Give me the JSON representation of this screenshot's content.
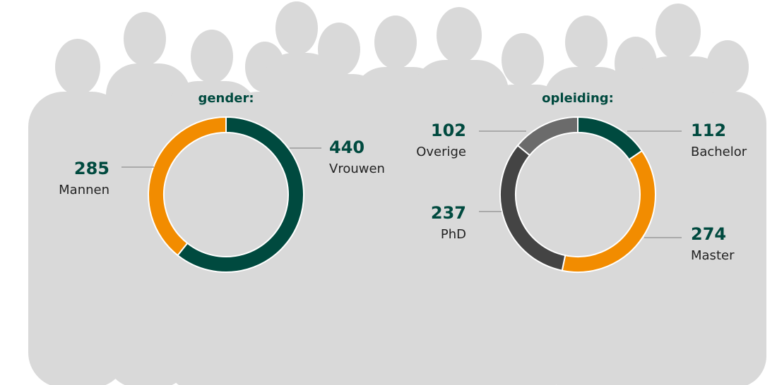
{
  "chart_data": [
    {
      "type": "pie",
      "title": "gender:",
      "categories": [
        "Vrouwen",
        "Mannen"
      ],
      "values": [
        440,
        285
      ],
      "colors": [
        "#004a3f",
        "#f28c00"
      ],
      "donut": true
    },
    {
      "type": "pie",
      "title": "opleiding:",
      "categories": [
        "Bachelor",
        "Master",
        "PhD",
        "Overige"
      ],
      "values": [
        112,
        274,
        237,
        102
      ],
      "colors": [
        "#004a3f",
        "#f28c00",
        "#444444",
        "#6b6b6b"
      ],
      "donut": true
    }
  ]
}
